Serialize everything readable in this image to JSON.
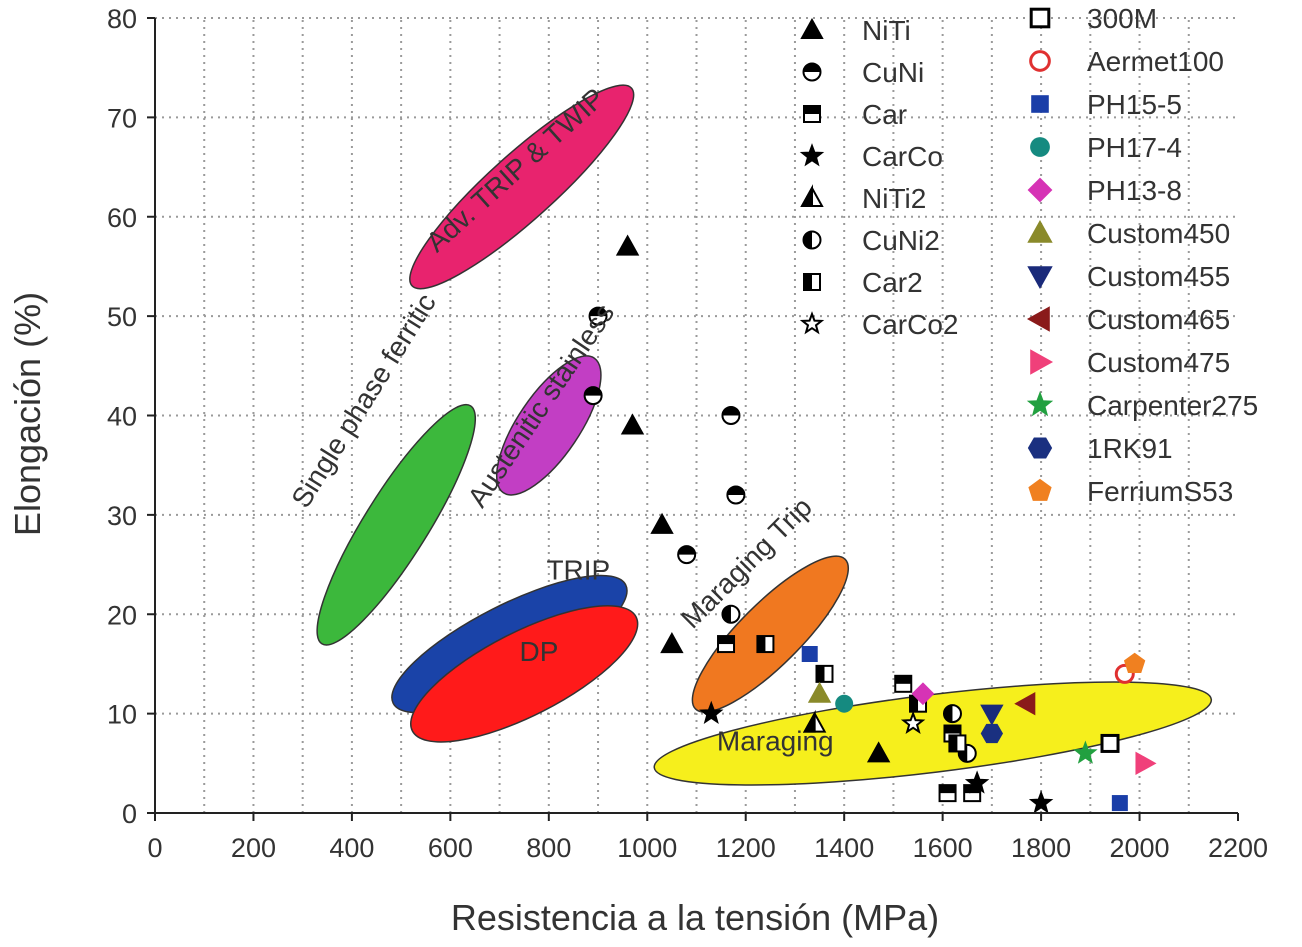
{
  "chart_data": {
    "type": "scatter",
    "title": "",
    "xlabel": "Resistencia a la tensión (MPa)",
    "ylabel": "Elongación (%)",
    "xlim": [
      0,
      2200
    ],
    "ylim": [
      0,
      80
    ],
    "xticks": [
      0,
      200,
      400,
      600,
      800,
      1000,
      1200,
      1400,
      1600,
      1800,
      2000,
      2200
    ],
    "yticks": [
      0,
      10,
      20,
      30,
      40,
      50,
      60,
      70,
      80
    ],
    "grid": true,
    "legend_position": "top-right",
    "regions": [
      {
        "label": "Adv. TRIP & TWIP",
        "color": "#e8236e",
        "cx": 745,
        "cy": 63,
        "rx": 300,
        "ry": 3.3,
        "angle_deg": 42
      },
      {
        "label": "Austenitic stainless",
        "color": "#c23ec4",
        "cx": 800,
        "cy": 39,
        "rx": 165,
        "ry": 3.1,
        "angle_deg": 56
      },
      {
        "label": "Single phase ferritic",
        "color": "#3cb83c",
        "cx": 490,
        "cy": 29,
        "rx": 285,
        "ry": 3.2,
        "angle_deg": 58
      },
      {
        "label": "TRIP",
        "color": "#1a43a8",
        "cx": 720,
        "cy": 17,
        "rx": 265,
        "ry": 3.9,
        "angle_deg": 27
      },
      {
        "label": "DP",
        "color": "#ff1a1a",
        "cx": 750,
        "cy": 14,
        "rx": 255,
        "ry": 4.2,
        "angle_deg": 27
      },
      {
        "label": "Maraging Trip",
        "color": "#f07820",
        "cx": 1250,
        "cy": 18,
        "rx": 215,
        "ry": 3.1,
        "angle_deg": 45
      },
      {
        "label": "Maraging",
        "color": "#f6ef1c",
        "cx": 1580,
        "cy": 8,
        "rx": 570,
        "ry": 3.9,
        "angle_deg": 7
      }
    ],
    "legend_left": [
      {
        "name": "NiTi",
        "marker": "triangle-black"
      },
      {
        "name": "CuNi",
        "marker": "circle-half-top"
      },
      {
        "name": "Car",
        "marker": "square-half-top"
      },
      {
        "name": "CarCo",
        "marker": "star-black"
      },
      {
        "name": "NiTi2",
        "marker": "triangle-half-left"
      },
      {
        "name": "CuNi2",
        "marker": "circle-half-left"
      },
      {
        "name": "Car2",
        "marker": "square-half-left"
      },
      {
        "name": "CarCo2",
        "marker": "star-outline"
      }
    ],
    "legend_right": [
      {
        "name": "300M",
        "marker": "square-open",
        "color": "#000000"
      },
      {
        "name": "Aermet100",
        "marker": "circle-open",
        "color": "#e03030"
      },
      {
        "name": "PH15-5",
        "marker": "square",
        "color": "#1a3ea8"
      },
      {
        "name": "PH17-4",
        "marker": "circle",
        "color": "#158a80"
      },
      {
        "name": "PH13-8",
        "marker": "diamond",
        "color": "#d633b5"
      },
      {
        "name": "Custom450",
        "marker": "triangle-up",
        "color": "#8a8a2a"
      },
      {
        "name": "Custom455",
        "marker": "triangle-down",
        "color": "#1a2a7a"
      },
      {
        "name": "Custom465",
        "marker": "triangle-left",
        "color": "#8a1a1a"
      },
      {
        "name": "Custom475",
        "marker": "triangle-right",
        "color": "#f0407a"
      },
      {
        "name": "Carpenter275",
        "marker": "star",
        "color": "#22a040"
      },
      {
        "name": "1RK91",
        "marker": "hexagon",
        "color": "#1a3080"
      },
      {
        "name": "FerriumS53",
        "marker": "pentagon",
        "color": "#f08020"
      }
    ],
    "points": [
      {
        "series": "NiTi",
        "x": 960,
        "y": 57
      },
      {
        "series": "NiTi",
        "x": 970,
        "y": 39
      },
      {
        "series": "NiTi",
        "x": 1030,
        "y": 29
      },
      {
        "series": "NiTi",
        "x": 1050,
        "y": 17
      },
      {
        "series": "NiTi",
        "x": 1470,
        "y": 6
      },
      {
        "series": "NiTi2",
        "x": 1340,
        "y": 9
      },
      {
        "series": "CuNi",
        "x": 900,
        "y": 50
      },
      {
        "series": "CuNi",
        "x": 890,
        "y": 42
      },
      {
        "series": "CuNi",
        "x": 1170,
        "y": 40
      },
      {
        "series": "CuNi",
        "x": 1180,
        "y": 32
      },
      {
        "series": "CuNi",
        "x": 1080,
        "y": 26
      },
      {
        "series": "CuNi2",
        "x": 1170,
        "y": 20
      },
      {
        "series": "CuNi2",
        "x": 1650,
        "y": 6
      },
      {
        "series": "CuNi2",
        "x": 1620,
        "y": 10
      },
      {
        "series": "Car",
        "x": 1160,
        "y": 17
      },
      {
        "series": "Car",
        "x": 1520,
        "y": 13
      },
      {
        "series": "Car",
        "x": 1620,
        "y": 8
      },
      {
        "series": "Car",
        "x": 1610,
        "y": 2
      },
      {
        "series": "Car",
        "x": 1660,
        "y": 2
      },
      {
        "series": "Car2",
        "x": 1240,
        "y": 17
      },
      {
        "series": "Car2",
        "x": 1360,
        "y": 14
      },
      {
        "series": "Car2",
        "x": 1550,
        "y": 11
      },
      {
        "series": "Car2",
        "x": 1630,
        "y": 7
      },
      {
        "series": "CarCo",
        "x": 1130,
        "y": 10
      },
      {
        "series": "CarCo",
        "x": 1800,
        "y": 1
      },
      {
        "series": "CarCo",
        "x": 1670,
        "y": 3
      },
      {
        "series": "CarCo2",
        "x": 1540,
        "y": 9
      },
      {
        "series": "300M",
        "x": 1940,
        "y": 7
      },
      {
        "series": "Aermet100",
        "x": 1970,
        "y": 14
      },
      {
        "series": "PH15-5",
        "x": 1330,
        "y": 16
      },
      {
        "series": "PH15-5",
        "x": 1960,
        "y": 1
      },
      {
        "series": "PH17-4",
        "x": 1400,
        "y": 11
      },
      {
        "series": "PH13-8",
        "x": 1560,
        "y": 12
      },
      {
        "series": "Custom450",
        "x": 1350,
        "y": 12
      },
      {
        "series": "Custom455",
        "x": 1700,
        "y": 10
      },
      {
        "series": "Custom465",
        "x": 1770,
        "y": 11
      },
      {
        "series": "Custom475",
        "x": 2010,
        "y": 5
      },
      {
        "series": "Carpenter275",
        "x": 1890,
        "y": 6
      },
      {
        "series": "1RK91",
        "x": 1700,
        "y": 8
      },
      {
        "series": "FerriumS53",
        "x": 1990,
        "y": 15
      }
    ]
  }
}
